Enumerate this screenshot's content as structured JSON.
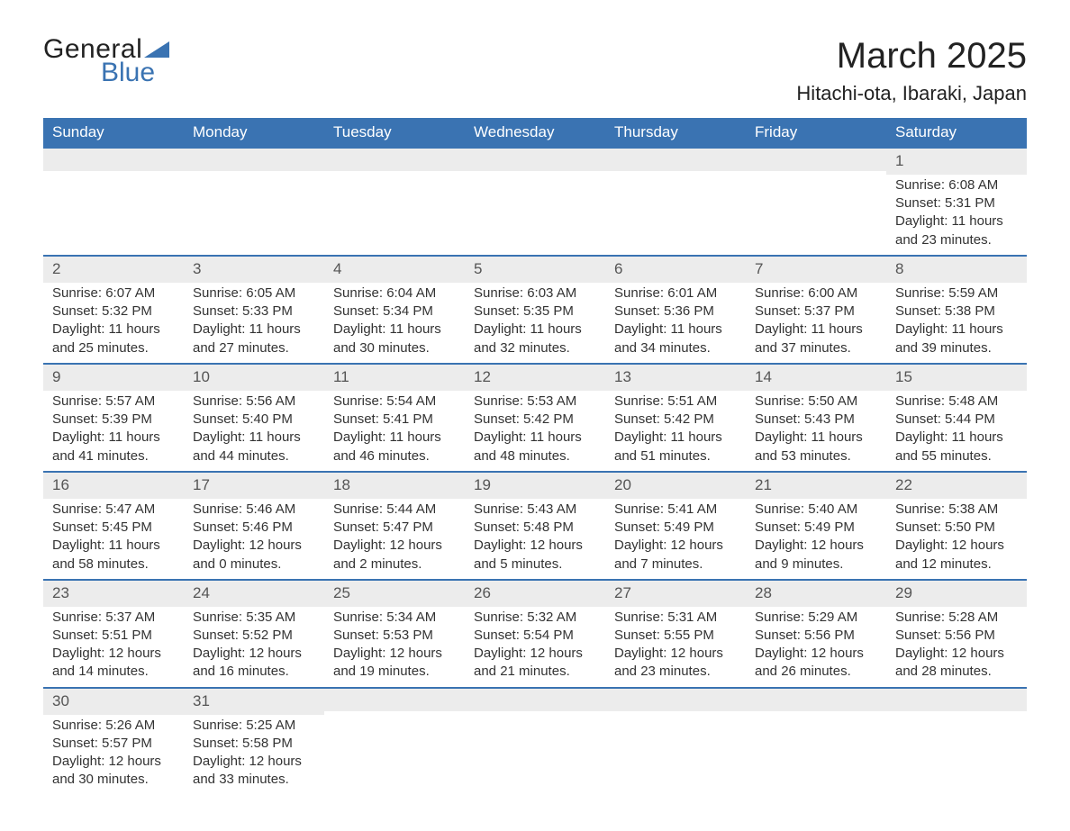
{
  "brand": {
    "text_general": "General",
    "text_blue": "Blue",
    "logo_fill": "#3a73b2"
  },
  "title": "March 2025",
  "location": "Hitachi-ota, Ibaraki, Japan",
  "colors": {
    "header_bg": "#3a73b2",
    "header_text": "#ffffff",
    "strip_bg": "#ececec",
    "week_divider": "#3a73b2",
    "body_text": "#333333"
  },
  "day_headers": [
    "Sunday",
    "Monday",
    "Tuesday",
    "Wednesday",
    "Thursday",
    "Friday",
    "Saturday"
  ],
  "weeks": [
    [
      {
        "n": "",
        "sr": "",
        "ss": "",
        "dl": ""
      },
      {
        "n": "",
        "sr": "",
        "ss": "",
        "dl": ""
      },
      {
        "n": "",
        "sr": "",
        "ss": "",
        "dl": ""
      },
      {
        "n": "",
        "sr": "",
        "ss": "",
        "dl": ""
      },
      {
        "n": "",
        "sr": "",
        "ss": "",
        "dl": ""
      },
      {
        "n": "",
        "sr": "",
        "ss": "",
        "dl": ""
      },
      {
        "n": "1",
        "sr": "Sunrise: 6:08 AM",
        "ss": "Sunset: 5:31 PM",
        "dl": "Daylight: 11 hours and 23 minutes."
      }
    ],
    [
      {
        "n": "2",
        "sr": "Sunrise: 6:07 AM",
        "ss": "Sunset: 5:32 PM",
        "dl": "Daylight: 11 hours and 25 minutes."
      },
      {
        "n": "3",
        "sr": "Sunrise: 6:05 AM",
        "ss": "Sunset: 5:33 PM",
        "dl": "Daylight: 11 hours and 27 minutes."
      },
      {
        "n": "4",
        "sr": "Sunrise: 6:04 AM",
        "ss": "Sunset: 5:34 PM",
        "dl": "Daylight: 11 hours and 30 minutes."
      },
      {
        "n": "5",
        "sr": "Sunrise: 6:03 AM",
        "ss": "Sunset: 5:35 PM",
        "dl": "Daylight: 11 hours and 32 minutes."
      },
      {
        "n": "6",
        "sr": "Sunrise: 6:01 AM",
        "ss": "Sunset: 5:36 PM",
        "dl": "Daylight: 11 hours and 34 minutes."
      },
      {
        "n": "7",
        "sr": "Sunrise: 6:00 AM",
        "ss": "Sunset: 5:37 PM",
        "dl": "Daylight: 11 hours and 37 minutes."
      },
      {
        "n": "8",
        "sr": "Sunrise: 5:59 AM",
        "ss": "Sunset: 5:38 PM",
        "dl": "Daylight: 11 hours and 39 minutes."
      }
    ],
    [
      {
        "n": "9",
        "sr": "Sunrise: 5:57 AM",
        "ss": "Sunset: 5:39 PM",
        "dl": "Daylight: 11 hours and 41 minutes."
      },
      {
        "n": "10",
        "sr": "Sunrise: 5:56 AM",
        "ss": "Sunset: 5:40 PM",
        "dl": "Daylight: 11 hours and 44 minutes."
      },
      {
        "n": "11",
        "sr": "Sunrise: 5:54 AM",
        "ss": "Sunset: 5:41 PM",
        "dl": "Daylight: 11 hours and 46 minutes."
      },
      {
        "n": "12",
        "sr": "Sunrise: 5:53 AM",
        "ss": "Sunset: 5:42 PM",
        "dl": "Daylight: 11 hours and 48 minutes."
      },
      {
        "n": "13",
        "sr": "Sunrise: 5:51 AM",
        "ss": "Sunset: 5:42 PM",
        "dl": "Daylight: 11 hours and 51 minutes."
      },
      {
        "n": "14",
        "sr": "Sunrise: 5:50 AM",
        "ss": "Sunset: 5:43 PM",
        "dl": "Daylight: 11 hours and 53 minutes."
      },
      {
        "n": "15",
        "sr": "Sunrise: 5:48 AM",
        "ss": "Sunset: 5:44 PM",
        "dl": "Daylight: 11 hours and 55 minutes."
      }
    ],
    [
      {
        "n": "16",
        "sr": "Sunrise: 5:47 AM",
        "ss": "Sunset: 5:45 PM",
        "dl": "Daylight: 11 hours and 58 minutes."
      },
      {
        "n": "17",
        "sr": "Sunrise: 5:46 AM",
        "ss": "Sunset: 5:46 PM",
        "dl": "Daylight: 12 hours and 0 minutes."
      },
      {
        "n": "18",
        "sr": "Sunrise: 5:44 AM",
        "ss": "Sunset: 5:47 PM",
        "dl": "Daylight: 12 hours and 2 minutes."
      },
      {
        "n": "19",
        "sr": "Sunrise: 5:43 AM",
        "ss": "Sunset: 5:48 PM",
        "dl": "Daylight: 12 hours and 5 minutes."
      },
      {
        "n": "20",
        "sr": "Sunrise: 5:41 AM",
        "ss": "Sunset: 5:49 PM",
        "dl": "Daylight: 12 hours and 7 minutes."
      },
      {
        "n": "21",
        "sr": "Sunrise: 5:40 AM",
        "ss": "Sunset: 5:49 PM",
        "dl": "Daylight: 12 hours and 9 minutes."
      },
      {
        "n": "22",
        "sr": "Sunrise: 5:38 AM",
        "ss": "Sunset: 5:50 PM",
        "dl": "Daylight: 12 hours and 12 minutes."
      }
    ],
    [
      {
        "n": "23",
        "sr": "Sunrise: 5:37 AM",
        "ss": "Sunset: 5:51 PM",
        "dl": "Daylight: 12 hours and 14 minutes."
      },
      {
        "n": "24",
        "sr": "Sunrise: 5:35 AM",
        "ss": "Sunset: 5:52 PM",
        "dl": "Daylight: 12 hours and 16 minutes."
      },
      {
        "n": "25",
        "sr": "Sunrise: 5:34 AM",
        "ss": "Sunset: 5:53 PM",
        "dl": "Daylight: 12 hours and 19 minutes."
      },
      {
        "n": "26",
        "sr": "Sunrise: 5:32 AM",
        "ss": "Sunset: 5:54 PM",
        "dl": "Daylight: 12 hours and 21 minutes."
      },
      {
        "n": "27",
        "sr": "Sunrise: 5:31 AM",
        "ss": "Sunset: 5:55 PM",
        "dl": "Daylight: 12 hours and 23 minutes."
      },
      {
        "n": "28",
        "sr": "Sunrise: 5:29 AM",
        "ss": "Sunset: 5:56 PM",
        "dl": "Daylight: 12 hours and 26 minutes."
      },
      {
        "n": "29",
        "sr": "Sunrise: 5:28 AM",
        "ss": "Sunset: 5:56 PM",
        "dl": "Daylight: 12 hours and 28 minutes."
      }
    ],
    [
      {
        "n": "30",
        "sr": "Sunrise: 5:26 AM",
        "ss": "Sunset: 5:57 PM",
        "dl": "Daylight: 12 hours and 30 minutes."
      },
      {
        "n": "31",
        "sr": "Sunrise: 5:25 AM",
        "ss": "Sunset: 5:58 PM",
        "dl": "Daylight: 12 hours and 33 minutes."
      },
      {
        "n": "",
        "sr": "",
        "ss": "",
        "dl": ""
      },
      {
        "n": "",
        "sr": "",
        "ss": "",
        "dl": ""
      },
      {
        "n": "",
        "sr": "",
        "ss": "",
        "dl": ""
      },
      {
        "n": "",
        "sr": "",
        "ss": "",
        "dl": ""
      },
      {
        "n": "",
        "sr": "",
        "ss": "",
        "dl": ""
      }
    ]
  ]
}
